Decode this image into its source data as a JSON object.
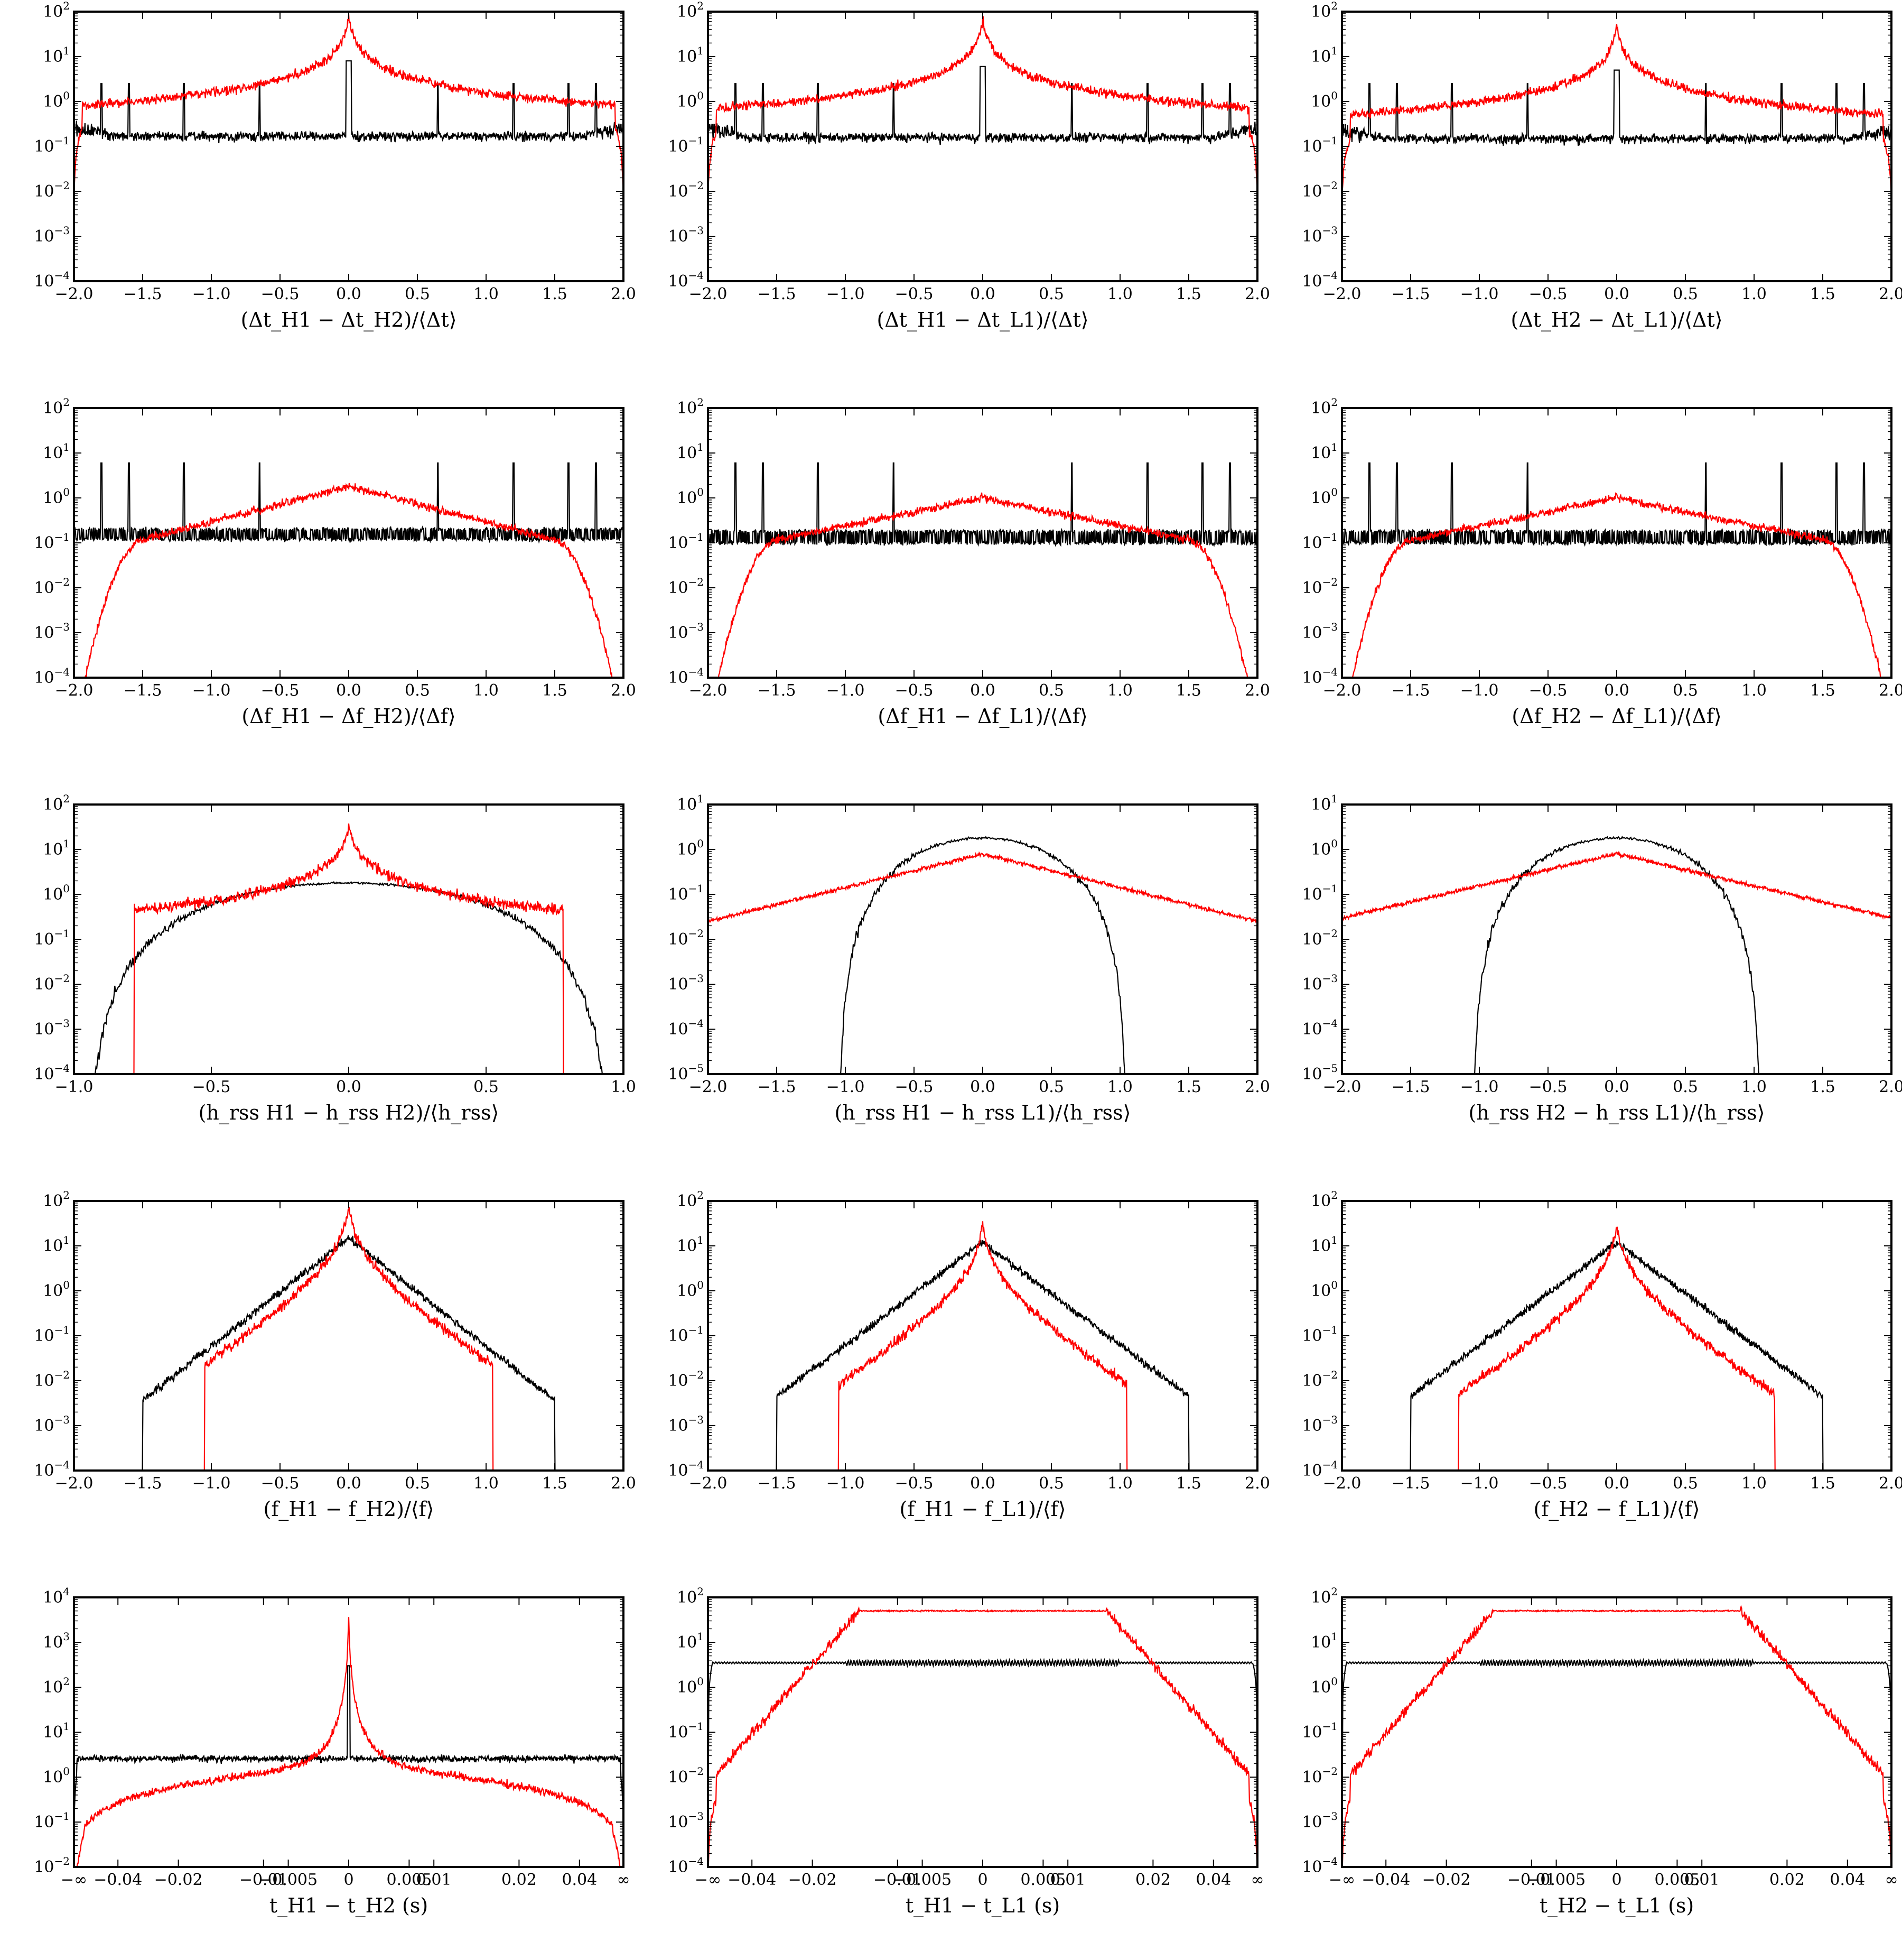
{
  "figure": {
    "colors": {
      "series_a": "#000000",
      "series_b": "#ff0000"
    }
  },
  "chart_data": [
    {
      "id": "p11",
      "type": "line",
      "xlabel": "(Δt_H1 − Δt_H2)/⟨Δt⟩",
      "xscale": "linear",
      "xlim": [
        -2,
        2
      ],
      "xticks": [
        "−2.0",
        "−1.5",
        "−1.0",
        "−0.5",
        "0.0",
        "0.5",
        "1.0",
        "1.5",
        "2.0"
      ],
      "yscale": "log",
      "ylim": [
        0.0001,
        100.0
      ],
      "yticks": [
        "10^-4",
        "10^-3",
        "10^-2",
        "10^-1",
        "10^0",
        "10^1",
        "10^2"
      ],
      "series": [
        {
          "color": "#000000",
          "shape": "flat_spikes",
          "base": 0.17,
          "edge": 0.5,
          "peak": 8,
          "spikes": [
            -1.8,
            -1.6,
            -1.2,
            -0.65,
            0.65,
            1.2,
            1.6,
            1.8
          ],
          "spike_height": 2.5
        },
        {
          "color": "#ff0000",
          "shape": "cusp",
          "center": 80,
          "width": 0.02,
          "tail": 0.015,
          "edge_drop": true
        }
      ]
    },
    {
      "id": "p12",
      "type": "line",
      "xlabel": "(Δt_H1 − Δt_L1)/⟨Δt⟩",
      "xscale": "linear",
      "xlim": [
        -2,
        2
      ],
      "xticks": [
        "−2.0",
        "−1.5",
        "−1.0",
        "−0.5",
        "0.0",
        "0.5",
        "1.0",
        "1.5",
        "2.0"
      ],
      "yscale": "log",
      "ylim": [
        0.0001,
        100.0
      ],
      "yticks": [
        "10^-4",
        "10^-3",
        "10^-2",
        "10^-1",
        "10^0",
        "10^1",
        "10^2"
      ],
      "series": [
        {
          "color": "#000000",
          "shape": "flat_spikes",
          "base": 0.16,
          "edge": 0.5,
          "peak": 6,
          "spikes": [
            -1.8,
            -1.6,
            -1.2,
            -0.65,
            0.65,
            1.2,
            1.6,
            1.8
          ],
          "spike_height": 2.5
        },
        {
          "color": "#ff0000",
          "shape": "cusp",
          "center": 70,
          "width": 0.02,
          "tail": 0.02,
          "edge_drop": true
        }
      ]
    },
    {
      "id": "p13",
      "type": "line",
      "xlabel": "(Δt_H2 − Δt_L1)/⟨Δt⟩",
      "xscale": "linear",
      "xlim": [
        -2,
        2
      ],
      "xticks": [
        "−2.0",
        "−1.5",
        "−1.0",
        "−0.5",
        "0.0",
        "0.5",
        "1.0",
        "1.5",
        "2.0"
      ],
      "yscale": "log",
      "ylim": [
        0.0001,
        100.0
      ],
      "yticks": [
        "10^-4",
        "10^-3",
        "10^-2",
        "10^-1",
        "10^0",
        "10^1",
        "10^2"
      ],
      "series": [
        {
          "color": "#000000",
          "shape": "flat_spikes",
          "base": 0.15,
          "edge": 0.5,
          "peak": 5,
          "spikes": [
            -1.8,
            -1.6,
            -1.2,
            -0.65,
            0.65,
            1.2,
            1.6,
            1.8
          ],
          "spike_height": 2.5
        },
        {
          "color": "#ff0000",
          "shape": "cusp",
          "center": 50,
          "width": 0.02,
          "tail": 0.02,
          "edge_drop": true
        }
      ]
    },
    {
      "id": "p21",
      "type": "line",
      "xlabel": "(Δf_H1 − Δf_H2)/⟨Δf⟩",
      "xscale": "linear",
      "xlim": [
        -2,
        2
      ],
      "xticks": [
        "−2.0",
        "−1.5",
        "−1.0",
        "−0.5",
        "0.0",
        "0.5",
        "1.0",
        "1.5",
        "2.0"
      ],
      "yscale": "log",
      "ylim": [
        0.0001,
        100.0
      ],
      "yticks": [
        "10^-4",
        "10^-3",
        "10^-2",
        "10^-1",
        "10^0",
        "10^1",
        "10^2"
      ],
      "series": [
        {
          "color": "#000000",
          "shape": "twin_flat_spikes",
          "base": 0.12,
          "upper": 0.2,
          "peak": 18,
          "spikes": [
            -1.8,
            -1.6,
            -1.2,
            -0.65,
            0.65,
            1.2,
            1.6,
            1.8
          ],
          "spike_height": 6
        },
        {
          "color": "#ff0000",
          "shape": "broad_peak",
          "center": 1.8,
          "width": 0.55,
          "edge_fall": 1.7
        }
      ]
    },
    {
      "id": "p22",
      "type": "line",
      "xlabel": "(Δf_H1 − Δf_L1)/⟨Δf⟩",
      "xscale": "linear",
      "xlim": [
        -2,
        2
      ],
      "xticks": [
        "−2.0",
        "−1.5",
        "−1.0",
        "−0.5",
        "0.0",
        "0.5",
        "1.0",
        "1.5",
        "2.0"
      ],
      "yscale": "log",
      "ylim": [
        0.0001,
        100.0
      ],
      "yticks": [
        "10^-4",
        "10^-3",
        "10^-2",
        "10^-1",
        "10^0",
        "10^1",
        "10^2"
      ],
      "series": [
        {
          "color": "#000000",
          "shape": "twin_flat_spikes",
          "base": 0.1,
          "upper": 0.18,
          "peak": 18,
          "spikes": [
            -1.8,
            -1.6,
            -1.2,
            -0.65,
            0.65,
            1.2,
            1.6,
            1.8
          ],
          "spike_height": 6
        },
        {
          "color": "#ff0000",
          "shape": "broad_peak",
          "center": 1.0,
          "width": 0.7,
          "edge_fall": 1.75
        }
      ]
    },
    {
      "id": "p23",
      "type": "line",
      "xlabel": "(Δf_H2 − Δf_L1)/⟨Δf⟩",
      "xscale": "linear",
      "xlim": [
        -2,
        2
      ],
      "xticks": [
        "−2.0",
        "−1.5",
        "−1.0",
        "−0.5",
        "0.0",
        "0.5",
        "1.0",
        "1.5",
        "2.0"
      ],
      "yscale": "log",
      "ylim": [
        0.0001,
        100.0
      ],
      "yticks": [
        "10^-4",
        "10^-3",
        "10^-2",
        "10^-1",
        "10^0",
        "10^1",
        "10^2"
      ],
      "series": [
        {
          "color": "#000000",
          "shape": "twin_flat_spikes",
          "base": 0.1,
          "upper": 0.18,
          "peak": 18,
          "spikes": [
            -1.8,
            -1.6,
            -1.2,
            -0.65,
            0.65,
            1.2,
            1.6,
            1.8
          ],
          "spike_height": 6
        },
        {
          "color": "#ff0000",
          "shape": "broad_peak",
          "center": 1.0,
          "width": 0.7,
          "edge_fall": 1.75
        }
      ]
    },
    {
      "id": "p31",
      "type": "line",
      "xlabel": "(h_rss H1 − h_rss H2)/⟨h_rss⟩",
      "xscale": "linear",
      "xlim": [
        -1,
        1
      ],
      "xticks": [
        "−1.0",
        "−0.5",
        "0.0",
        "0.5",
        "1.0"
      ],
      "yscale": "log",
      "ylim": [
        0.0001,
        100.0
      ],
      "yticks": [
        "10^-4",
        "10^-3",
        "10^-2",
        "10^-1",
        "10^0",
        "10^1",
        "10^2"
      ],
      "series": [
        {
          "color": "#000000",
          "shape": "dome",
          "center": 1.8,
          "half_width": 0.95
        },
        {
          "color": "#ff0000",
          "shape": "cusp_finite",
          "center": 30,
          "width": 0.012,
          "scale": 0.07,
          "cutoff": 0.78
        }
      ]
    },
    {
      "id": "p32",
      "type": "line",
      "xlabel": "(h_rss H1 − h_rss L1)/⟨h_rss⟩",
      "xscale": "linear",
      "xlim": [
        -2,
        2
      ],
      "xticks": [
        "−2.0",
        "−1.5",
        "−1.0",
        "−0.5",
        "0.0",
        "0.5",
        "1.0",
        "1.5",
        "2.0"
      ],
      "yscale": "log",
      "ylim": [
        1e-05,
        10.0
      ],
      "yticks": [
        "10^-5",
        "10^-4",
        "10^-3",
        "10^-2",
        "10^-1",
        "10^0",
        "10^1"
      ],
      "series": [
        {
          "color": "#000000",
          "shape": "dome",
          "center": 1.8,
          "half_width": 1.05
        },
        {
          "color": "#ff0000",
          "shape": "triangle_log",
          "center": 0.8,
          "edge": 0.025
        }
      ]
    },
    {
      "id": "p33",
      "type": "line",
      "xlabel": "(h_rss H2 − h_rss L1)/⟨h_rss⟩",
      "xscale": "linear",
      "xlim": [
        -2,
        2
      ],
      "xticks": [
        "−2.0",
        "−1.5",
        "−1.0",
        "−0.5",
        "0.0",
        "0.5",
        "1.0",
        "1.5",
        "2.0"
      ],
      "yscale": "log",
      "ylim": [
        1e-05,
        10.0
      ],
      "yticks": [
        "10^-5",
        "10^-4",
        "10^-3",
        "10^-2",
        "10^-1",
        "10^0",
        "10^1"
      ],
      "series": [
        {
          "color": "#000000",
          "shape": "dome",
          "center": 1.8,
          "half_width": 1.05
        },
        {
          "color": "#ff0000",
          "shape": "triangle_log",
          "center": 0.8,
          "edge": 0.03
        }
      ]
    },
    {
      "id": "p41",
      "type": "line",
      "xlabel": "(f_H1 − f_H2)/⟨f⟩",
      "xscale": "linear",
      "xlim": [
        -2,
        2
      ],
      "xticks": [
        "−2.0",
        "−1.5",
        "−1.0",
        "−0.5",
        "0.0",
        "0.5",
        "1.0",
        "1.5",
        "2.0"
      ],
      "yscale": "log",
      "ylim": [
        0.0001,
        100.0
      ],
      "yticks": [
        "10^-4",
        "10^-3",
        "10^-2",
        "10^-1",
        "10^0",
        "10^1",
        "10^2"
      ],
      "series": [
        {
          "color": "#000000",
          "shape": "laplace",
          "center": 15,
          "scale": 0.18,
          "cutoff": 1.5
        },
        {
          "color": "#ff0000",
          "shape": "laplace_sparse",
          "center": 80,
          "scale": 0.08,
          "cutoff": 1.05
        }
      ]
    },
    {
      "id": "p42",
      "type": "line",
      "xlabel": "(f_H1 − f_L1)/⟨f⟩",
      "xscale": "linear",
      "xlim": [
        -2,
        2
      ],
      "xticks": [
        "−2.0",
        "−1.5",
        "−1.0",
        "−0.5",
        "0.0",
        "0.5",
        "1.0",
        "1.5",
        "2.0"
      ],
      "yscale": "log",
      "ylim": [
        0.0001,
        100.0
      ],
      "yticks": [
        "10^-4",
        "10^-3",
        "10^-2",
        "10^-1",
        "10^0",
        "10^1",
        "10^2"
      ],
      "series": [
        {
          "color": "#000000",
          "shape": "laplace",
          "center": 12,
          "scale": 0.19,
          "cutoff": 1.5
        },
        {
          "color": "#ff0000",
          "shape": "laplace_sparse",
          "center": 30,
          "scale": 0.09,
          "cutoff": 1.05
        }
      ]
    },
    {
      "id": "p43",
      "type": "line",
      "xlabel": "(f_H2 − f_L1)/⟨f⟩",
      "xscale": "linear",
      "xlim": [
        -2,
        2
      ],
      "xticks": [
        "−2.0",
        "−1.5",
        "−1.0",
        "−0.5",
        "0.0",
        "0.5",
        "1.0",
        "1.5",
        "2.0"
      ],
      "yscale": "log",
      "ylim": [
        0.0001,
        100.0
      ],
      "yticks": [
        "10^-4",
        "10^-3",
        "10^-2",
        "10^-1",
        "10^0",
        "10^1",
        "10^2"
      ],
      "series": [
        {
          "color": "#000000",
          "shape": "laplace",
          "center": 12,
          "scale": 0.19,
          "cutoff": 1.5
        },
        {
          "color": "#ff0000",
          "shape": "laplace_sparse",
          "center": 30,
          "scale": 0.09,
          "cutoff": 1.15
        }
      ]
    },
    {
      "id": "p51",
      "type": "line",
      "xlabel": "t_H1 − t_H2 (s)",
      "xscale": "arctan",
      "xlim": [
        -1,
        1
      ],
      "xticks": [
        {
          "v": "-inf",
          "label": "−∞"
        },
        {
          "v": -0.04,
          "label": "−0.04"
        },
        {
          "v": -0.02,
          "label": "−0.02"
        },
        {
          "v": -0.01,
          "label": "−0.01"
        },
        {
          "v": -0.005,
          "label": "−0.005"
        },
        {
          "v": 0,
          "label": "0"
        },
        {
          "v": 0.005,
          "label": "0.005"
        },
        {
          "v": 0.01,
          "label": "0.01"
        },
        {
          "v": 0.02,
          "label": "0.02"
        },
        {
          "v": 0.04,
          "label": "0.04"
        },
        {
          "v": "inf",
          "label": "∞"
        }
      ],
      "yscale": "log",
      "ylim": [
        0.01,
        10000.0
      ],
      "yticks": [
        "10^-2",
        "10^-1",
        "10^0",
        "10^1",
        "10^2",
        "10^3",
        "10^4"
      ],
      "series": [
        {
          "color": "#000000",
          "shape": "plateau_spikes",
          "level": 2.6,
          "peak": 300,
          "spike_height": 10
        },
        {
          "color": "#ff0000",
          "shape": "cusp_time",
          "center": 3500,
          "width": 0.004,
          "tail": 1.5
        }
      ]
    },
    {
      "id": "p52",
      "type": "line",
      "xlabel": "t_H1 − t_L1 (s)",
      "xscale": "arctan",
      "xlim": [
        -1,
        1
      ],
      "xticks": [
        {
          "v": "-inf",
          "label": "−∞"
        },
        {
          "v": -0.04,
          "label": "−0.04"
        },
        {
          "v": -0.02,
          "label": "−0.02"
        },
        {
          "v": -0.01,
          "label": "−0.01"
        },
        {
          "v": -0.005,
          "label": "−0.005"
        },
        {
          "v": 0,
          "label": "0"
        },
        {
          "v": 0.005,
          "label": "0.005"
        },
        {
          "v": 0.01,
          "label": "0.01"
        },
        {
          "v": 0.02,
          "label": "0.02"
        },
        {
          "v": 0.04,
          "label": "0.04"
        },
        {
          "v": "inf",
          "label": "∞"
        }
      ],
      "yscale": "log",
      "ylim": [
        0.0001,
        100.0
      ],
      "yticks": [
        "10^-4",
        "10^-3",
        "10^-2",
        "10^-1",
        "10^0",
        "10^1",
        "10^2"
      ],
      "series": [
        {
          "color": "#000000",
          "shape": "plateau_wiggle",
          "level": 3.5
        },
        {
          "color": "#ff0000",
          "shape": "flat_top",
          "level": 50,
          "shoulder": 0.0095
        }
      ]
    },
    {
      "id": "p53",
      "type": "line",
      "xlabel": "t_H2 − t_L1 (s)",
      "xscale": "arctan",
      "xlim": [
        -1,
        1
      ],
      "xticks": [
        {
          "v": "-inf",
          "label": "−∞"
        },
        {
          "v": -0.04,
          "label": "−0.04"
        },
        {
          "v": -0.02,
          "label": "−0.02"
        },
        {
          "v": -0.01,
          "label": "−0.01"
        },
        {
          "v": -0.005,
          "label": "−0.005"
        },
        {
          "v": 0,
          "label": "0"
        },
        {
          "v": 0.005,
          "label": "0.005"
        },
        {
          "v": 0.01,
          "label": "0.01"
        },
        {
          "v": 0.02,
          "label": "0.02"
        },
        {
          "v": 0.04,
          "label": "0.04"
        },
        {
          "v": "inf",
          "label": "∞"
        }
      ],
      "yscale": "log",
      "ylim": [
        0.0001,
        100.0
      ],
      "yticks": [
        "10^-4",
        "10^-3",
        "10^-2",
        "10^-1",
        "10^0",
        "10^1",
        "10^2"
      ],
      "series": [
        {
          "color": "#000000",
          "shape": "plateau_wiggle",
          "level": 3.5
        },
        {
          "color": "#ff0000",
          "shape": "flat_top",
          "level": 50,
          "shoulder": 0.0095
        }
      ]
    }
  ]
}
